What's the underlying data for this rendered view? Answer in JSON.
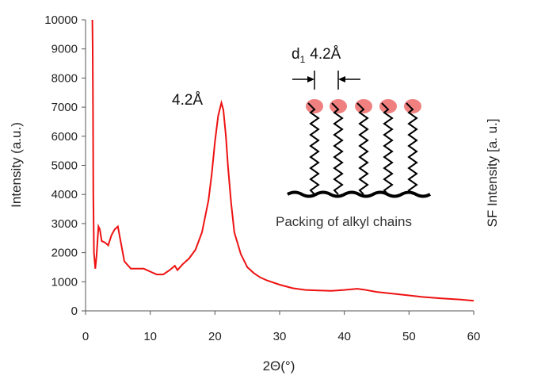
{
  "chart_data": {
    "type": "line",
    "xlabel": "2Θ(°)",
    "ylabel": "Intensity (a.u.)",
    "y2label": "SF Intensity [a. u.]",
    "xlim": [
      0,
      60
    ],
    "ylim": [
      0,
      10000
    ],
    "xticks": [
      "0",
      "10",
      "20",
      "30",
      "40",
      "50",
      "60"
    ],
    "yticks": [
      "0",
      "1000",
      "2000",
      "3000",
      "4000",
      "5000",
      "6000",
      "7000",
      "8000",
      "9000",
      "10000"
    ],
    "grid": false,
    "legend": "none",
    "color": "#ee1111",
    "series": [
      {
        "x": [
          1.0,
          1.05,
          1.1,
          1.15,
          1.2,
          1.3,
          1.5,
          1.7,
          2.0,
          2.2,
          2.5,
          3.0,
          3.5,
          4.0,
          4.5,
          5.0,
          5.5,
          6.0,
          7.0,
          8.0,
          9.0,
          10.0,
          11.0,
          12.0,
          13.0,
          13.8,
          14.2,
          15.0,
          16.0,
          17.0,
          18.0,
          19.0,
          19.5,
          20.0,
          20.5,
          21.0,
          21.3,
          21.7,
          22.0,
          22.5,
          23.0,
          24.0,
          25.0,
          26.0,
          27.0,
          28.0,
          30.0,
          32.0,
          34.0,
          36.0,
          38.0,
          40.0,
          42.0,
          43.0,
          45.0,
          48.0,
          50.0,
          52.0,
          55.0,
          58.0,
          60.0
        ],
        "y": [
          10000,
          10000,
          9000,
          7000,
          4000,
          2000,
          1450,
          1900,
          2900,
          2800,
          2400,
          2350,
          2250,
          2600,
          2800,
          2900,
          2300,
          1700,
          1450,
          1450,
          1450,
          1350,
          1250,
          1250,
          1400,
          1550,
          1400,
          1600,
          1800,
          2100,
          2700,
          3800,
          4700,
          5800,
          6700,
          7150,
          6900,
          6000,
          5000,
          3700,
          2700,
          1950,
          1500,
          1300,
          1150,
          1050,
          900,
          780,
          720,
          700,
          690,
          720,
          760,
          730,
          650,
          580,
          530,
          480,
          430,
          390,
          350
        ]
      }
    ],
    "annotations": {
      "peak_label": "4.2Å",
      "d_label_main": "d",
      "d_label_sub": "1",
      "d_label_value": "4.2Å",
      "inset_caption": "Packing of alkyl chains"
    }
  }
}
